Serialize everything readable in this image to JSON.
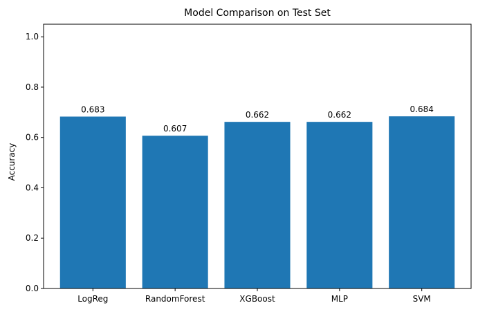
{
  "chart_data": {
    "type": "bar",
    "title": "Model Comparison on Test Set",
    "xlabel": "",
    "ylabel": "Accuracy",
    "categories": [
      "LogReg",
      "RandomForest",
      "XGBoost",
      "MLP",
      "SVM"
    ],
    "values": [
      0.683,
      0.607,
      0.662,
      0.662,
      0.684
    ],
    "value_labels": [
      "0.683",
      "0.607",
      "0.662",
      "0.662",
      "0.684"
    ],
    "ylim": [
      0,
      1.05
    ],
    "yticks": [
      0.0,
      0.2,
      0.4,
      0.6,
      0.8,
      1.0
    ],
    "ytick_labels": [
      "0.0",
      "0.2",
      "0.4",
      "0.6",
      "0.8",
      "1.0"
    ],
    "bar_color": "#1f77b4",
    "grid": false,
    "legend": "none"
  }
}
